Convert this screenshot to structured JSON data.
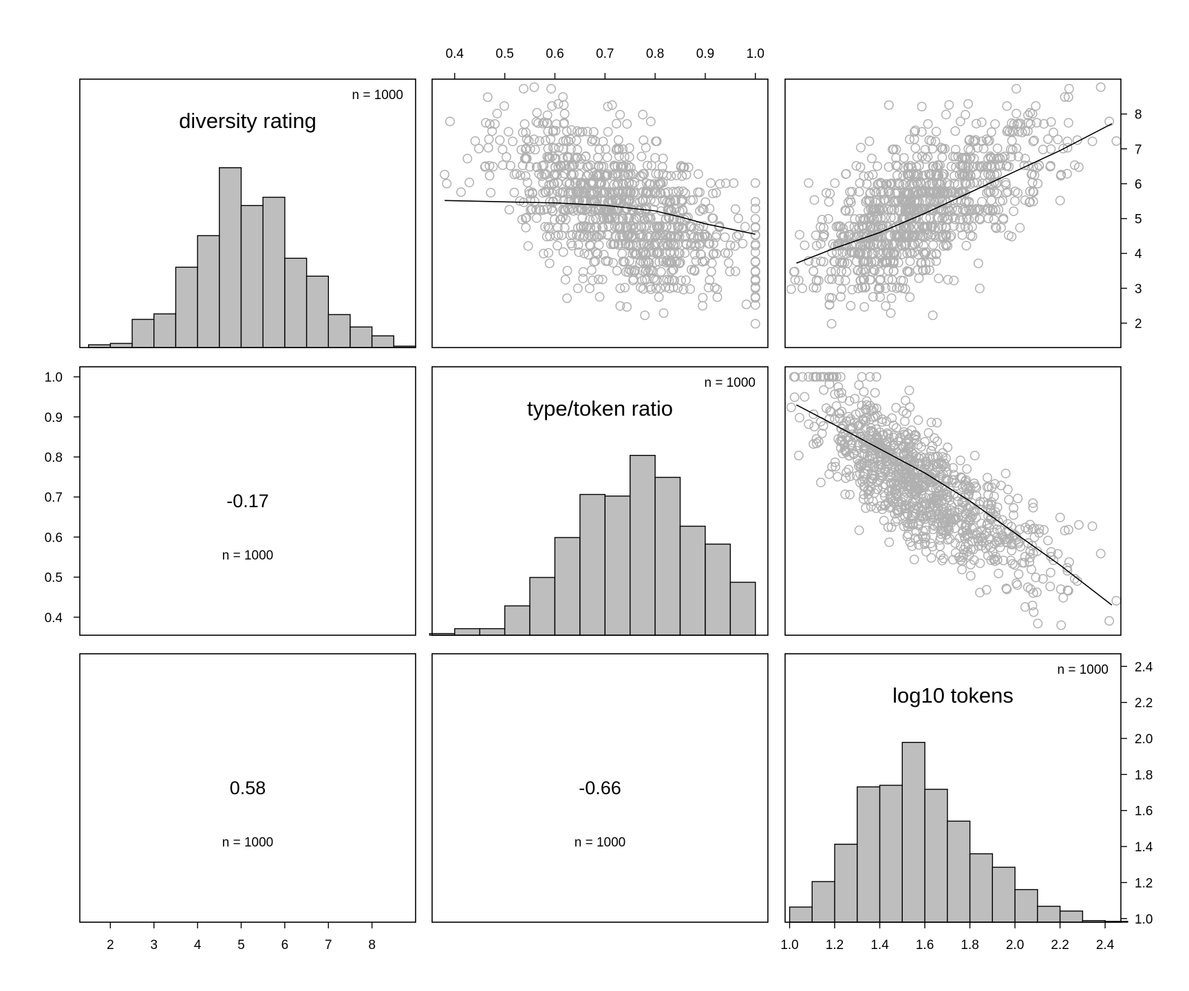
{
  "chart_data": {
    "type": "scatter-matrix",
    "variables": [
      {
        "name": "diversity rating",
        "lim": [
          1.3,
          9.0
        ],
        "ticks": [
          2,
          3,
          4,
          5,
          6,
          7,
          8
        ],
        "tick_labels": [
          "2",
          "3",
          "4",
          "5",
          "6",
          "7",
          "8"
        ],
        "n_label": "n = 1000",
        "hist": {
          "breaks": [
            1.5,
            2.0,
            2.5,
            3.0,
            3.5,
            4.0,
            4.5,
            5.0,
            5.5,
            6.0,
            6.5,
            7.0,
            7.5,
            8.0,
            8.5,
            9.0
          ],
          "counts": [
            4,
            6,
            41,
            49,
            117,
            163,
            262,
            207,
            219,
            130,
            104,
            48,
            30,
            17,
            2
          ]
        }
      },
      {
        "name": "type/token ratio",
        "lim": [
          0.355,
          1.025
        ],
        "ticks": [
          0.4,
          0.5,
          0.6,
          0.7,
          0.8,
          0.9,
          1.0
        ],
        "tick_labels": [
          "0.4",
          "0.5",
          "0.6",
          "0.7",
          "0.8",
          "0.9",
          "1.0"
        ],
        "n_label": "n = 1000",
        "hist": {
          "breaks": [
            0.35,
            0.4,
            0.45,
            0.5,
            0.55,
            0.6,
            0.65,
            0.7,
            0.75,
            0.8,
            0.85,
            0.9,
            0.95,
            1.0
          ],
          "counts": [
            2,
            8,
            8,
            36,
            71,
            120,
            173,
            171,
            221,
            194,
            134,
            112,
            65
          ]
        }
      },
      {
        "name": "log10 tokens",
        "lim": [
          0.98,
          2.47
        ],
        "ticks": [
          1.0,
          1.2,
          1.4,
          1.6,
          1.8,
          2.0,
          2.2,
          2.4
        ],
        "tick_labels": [
          "1.0",
          "1.2",
          "1.4",
          "1.6",
          "1.8",
          "2.0",
          "2.2",
          "2.4"
        ],
        "n_label": "n = 1000",
        "hist": {
          "breaks": [
            1.0,
            1.1,
            1.2,
            1.3,
            1.4,
            1.5,
            1.6,
            1.7,
            1.8,
            1.9,
            2.0,
            2.1,
            2.2,
            2.3,
            2.4,
            2.5
          ],
          "counts": [
            19,
            51,
            98,
            170,
            172,
            226,
            167,
            127,
            86,
            69,
            41,
            20,
            14,
            2,
            1
          ]
        }
      }
    ],
    "correlations": [
      {
        "row": 2,
        "col": 1,
        "value": "-0.17",
        "n_label": "n = 1000"
      },
      {
        "row": 3,
        "col": 1,
        "value": "0.58",
        "n_label": "n = 1000"
      },
      {
        "row": 3,
        "col": 2,
        "value": "-0.66",
        "n_label": "n = 1000"
      }
    ],
    "scatter": [
      {
        "row": 1,
        "col": 2,
        "x_var": "type/token ratio",
        "y_var": "diversity rating",
        "n_points": 1000,
        "smooth_x": [
          0.38,
          0.5,
          0.6,
          0.7,
          0.8,
          0.85,
          0.9,
          1.0
        ],
        "smooth_y": [
          5.52,
          5.48,
          5.45,
          5.38,
          5.22,
          5.05,
          4.85,
          4.55
        ]
      },
      {
        "row": 1,
        "col": 3,
        "x_var": "log10 tokens",
        "y_var": "diversity rating",
        "n_points": 1000,
        "smooth_x": [
          1.03,
          1.2,
          1.4,
          1.6,
          1.8,
          2.0,
          2.2,
          2.43
        ],
        "smooth_y": [
          3.72,
          4.15,
          4.6,
          5.15,
          5.75,
          6.35,
          6.95,
          7.72
        ]
      },
      {
        "row": 2,
        "col": 3,
        "x_var": "log10 tokens",
        "y_var": "type/token ratio",
        "n_points": 1000,
        "smooth_x": [
          1.03,
          1.2,
          1.4,
          1.6,
          1.8,
          2.0,
          2.2,
          2.43
        ],
        "smooth_y": [
          0.93,
          0.88,
          0.82,
          0.76,
          0.69,
          0.61,
          0.53,
          0.43
        ]
      }
    ],
    "point_color": "#b0b0b0",
    "bar_fill": "#bebebe",
    "grid": false
  }
}
